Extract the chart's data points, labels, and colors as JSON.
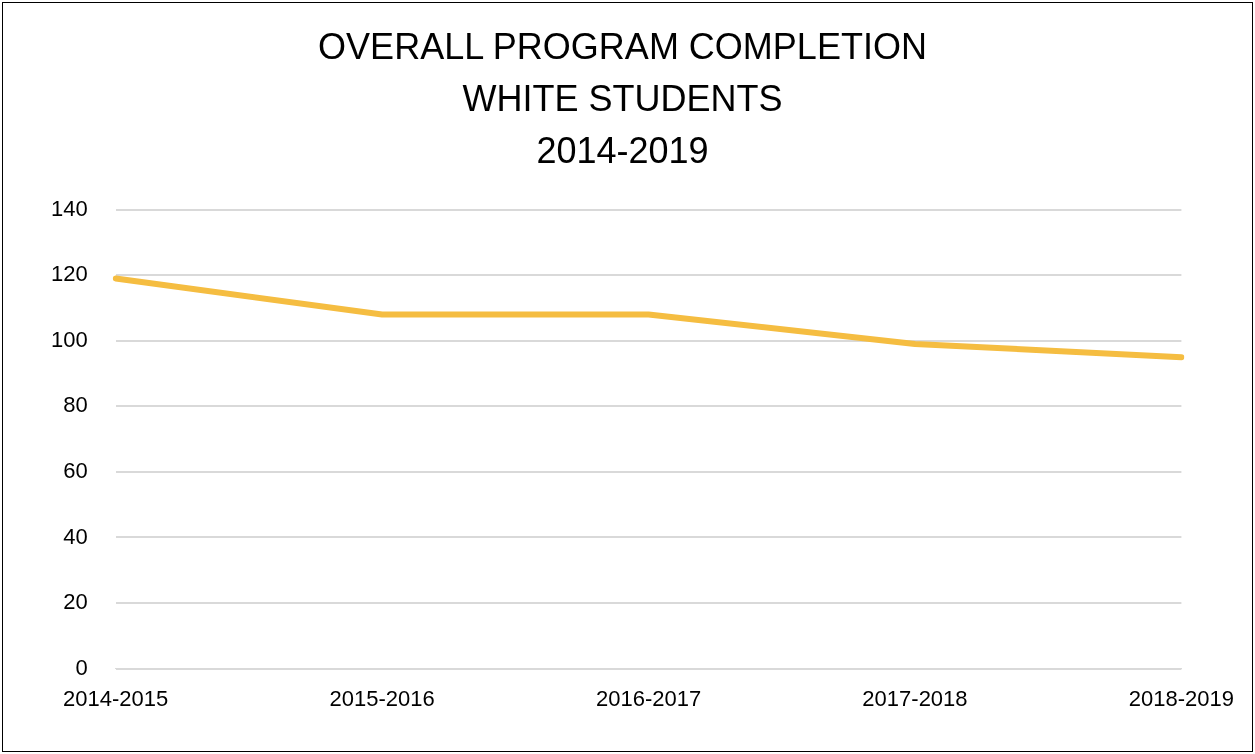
{
  "chart_data": {
    "type": "line",
    "title": "OVERALL PROGRAM COMPLETION\nWHITE STUDENTS\n2014-2019",
    "categories": [
      "2014-2015",
      "2015-2016",
      "2016-2017",
      "2017-2018",
      "2018-2019"
    ],
    "series": [
      {
        "color": "#f5bd41",
        "values": [
          119,
          108,
          108,
          99,
          95
        ]
      }
    ],
    "ylim": [
      0,
      140
    ],
    "yticks": [
      0,
      20,
      40,
      60,
      80,
      100,
      120,
      140
    ],
    "grid": "y",
    "legend": false,
    "marker": "none",
    "line_style": "solid"
  }
}
